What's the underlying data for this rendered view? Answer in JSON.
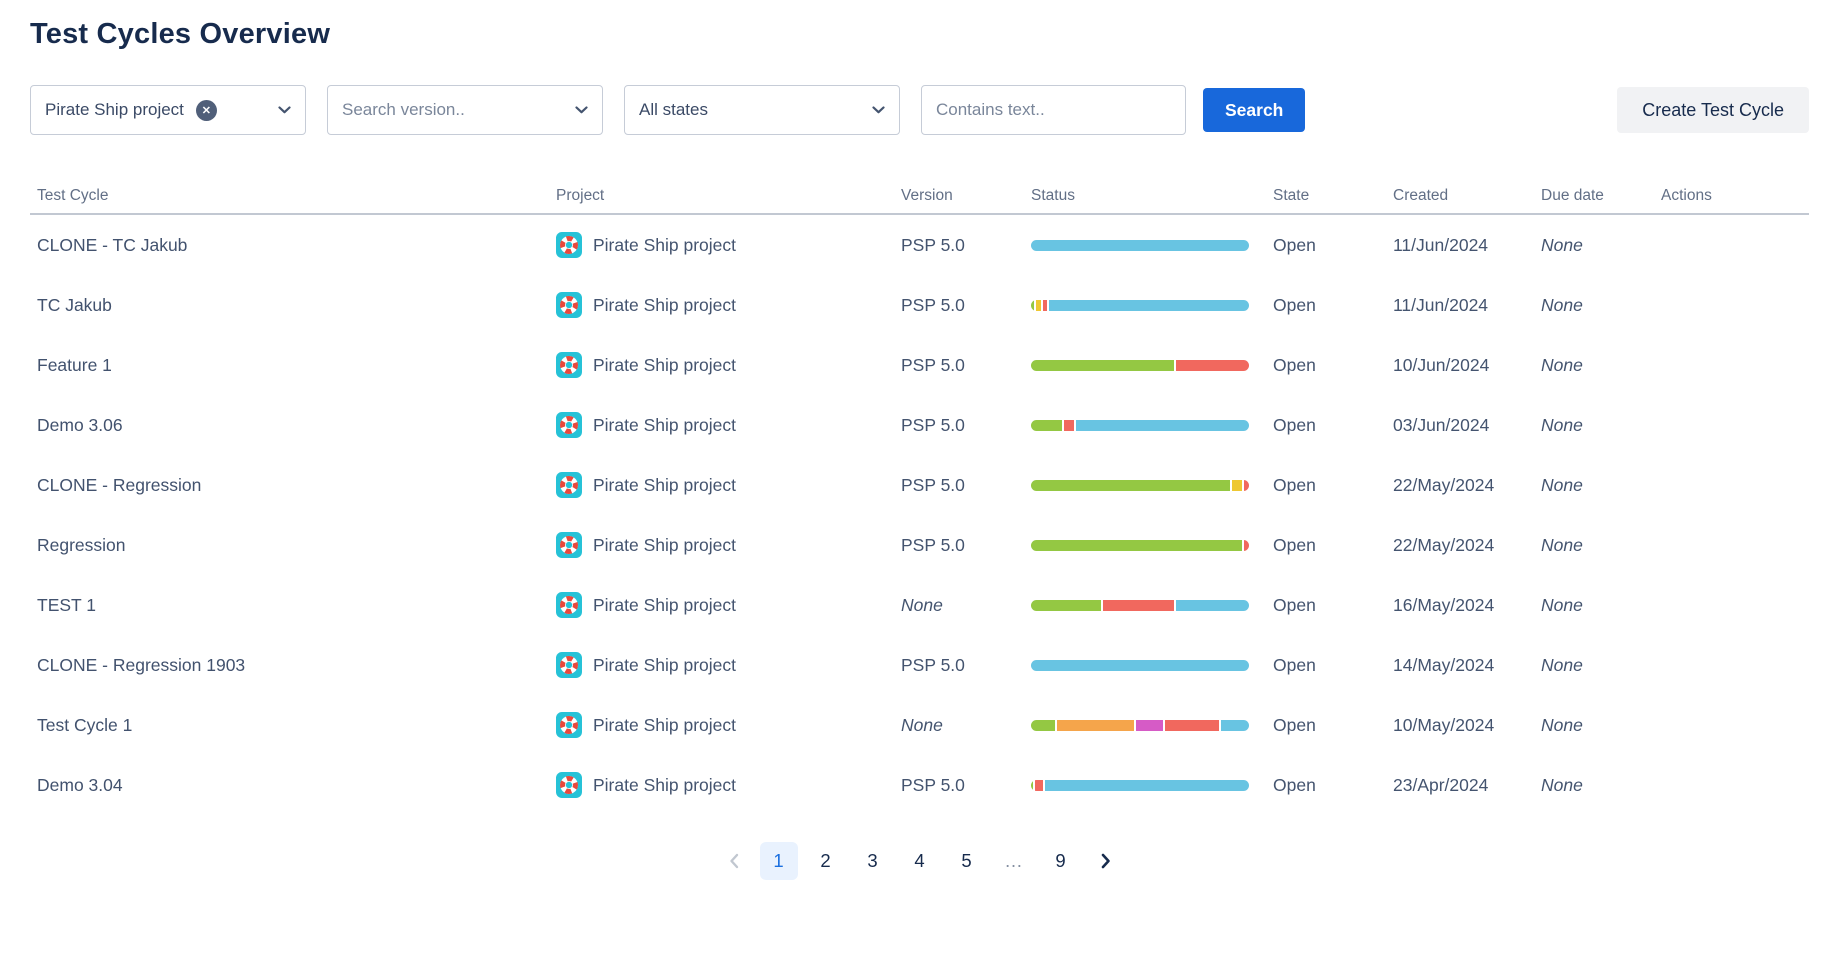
{
  "page_title": "Test Cycles Overview",
  "filters": {
    "project": {
      "value": "Pirate Ship project",
      "clear_icon": "cross-in-circle"
    },
    "version": {
      "placeholder": "Search version.."
    },
    "state": {
      "value": "All states"
    },
    "text": {
      "placeholder": "Contains text.."
    },
    "search_label": "Search",
    "create_label": "Create Test Cycle"
  },
  "status_colors": {
    "blue": "#68C4E2",
    "green": "#94C843",
    "red": "#F1685E",
    "yellow": "#EEC832",
    "orange": "#F5A54B",
    "pink": "#D65BC6"
  },
  "accent_colors": {
    "primary_blue": "#1868DB",
    "title_navy": "#172B4D",
    "pagination_active_bg": "#E9F2FE",
    "pagination_active_text": "#1A6FE0",
    "avatar_teal": "#26C2D7",
    "avatar_ring_red": "#E8483D"
  },
  "table": {
    "columns": [
      "Test Cycle",
      "Project",
      "Version",
      "Status",
      "State",
      "Created",
      "Due date",
      "Actions"
    ],
    "rows": [
      {
        "name": "CLONE - TC Jakub",
        "project": "Pirate Ship project",
        "version": "PSP 5.0",
        "state": "Open",
        "created": "11/Jun/2024",
        "due_date": "None",
        "status_segments": [
          {
            "color": "blue",
            "pct": 100
          }
        ]
      },
      {
        "name": "TC Jakub",
        "project": "Pirate Ship project",
        "version": "PSP 5.0",
        "state": "Open",
        "created": "11/Jun/2024",
        "due_date": "None",
        "status_segments": [
          {
            "color": "green",
            "pct": 1.5
          },
          {
            "color": "yellow",
            "pct": 2.5
          },
          {
            "color": "red",
            "pct": 1.5
          },
          {
            "color": "blue",
            "pct": 94.5
          }
        ]
      },
      {
        "name": "Feature 1",
        "project": "Pirate Ship project",
        "version": "PSP 5.0",
        "state": "Open",
        "created": "10/Jun/2024",
        "due_date": "None",
        "status_segments": [
          {
            "color": "green",
            "pct": 66
          },
          {
            "color": "red",
            "pct": 34
          }
        ]
      },
      {
        "name": "Demo 3.06",
        "project": "Pirate Ship project",
        "version": "PSP 5.0",
        "state": "Open",
        "created": "03/Jun/2024",
        "due_date": "None",
        "status_segments": [
          {
            "color": "green",
            "pct": 14.5
          },
          {
            "color": "red",
            "pct": 4.5
          },
          {
            "color": "blue",
            "pct": 81
          }
        ]
      },
      {
        "name": "CLONE - Regression",
        "project": "Pirate Ship project",
        "version": "PSP 5.0",
        "state": "Open",
        "created": "22/May/2024",
        "due_date": "None",
        "status_segments": [
          {
            "color": "green",
            "pct": 93
          },
          {
            "color": "yellow",
            "pct": 4.5
          },
          {
            "color": "red",
            "pct": 2.5
          }
        ]
      },
      {
        "name": "Regression",
        "project": "Pirate Ship project",
        "version": "PSP 5.0",
        "state": "Open",
        "created": "22/May/2024",
        "due_date": "None",
        "status_segments": [
          {
            "color": "green",
            "pct": 97.5
          },
          {
            "color": "red",
            "pct": 2.5
          }
        ]
      },
      {
        "name": "TEST 1",
        "project": "Pirate Ship project",
        "version": "None",
        "state": "Open",
        "created": "16/May/2024",
        "due_date": "None",
        "status_segments": [
          {
            "color": "green",
            "pct": 32.5
          },
          {
            "color": "red",
            "pct": 33.5
          },
          {
            "color": "blue",
            "pct": 34
          }
        ]
      },
      {
        "name": "CLONE - Regression 1903",
        "project": "Pirate Ship project",
        "version": "PSP 5.0",
        "state": "Open",
        "created": "14/May/2024",
        "due_date": "None",
        "status_segments": [
          {
            "color": "blue",
            "pct": 100
          }
        ]
      },
      {
        "name": "Test Cycle 1",
        "project": "Pirate Ship project",
        "version": "None",
        "state": "Open",
        "created": "10/May/2024",
        "due_date": "None",
        "status_segments": [
          {
            "color": "green",
            "pct": 11
          },
          {
            "color": "orange",
            "pct": 36
          },
          {
            "color": "pink",
            "pct": 12.5
          },
          {
            "color": "red",
            "pct": 25
          },
          {
            "color": "blue",
            "pct": 13
          }
        ]
      },
      {
        "name": "Demo 3.04",
        "project": "Pirate Ship project",
        "version": "PSP 5.0",
        "state": "Open",
        "created": "23/Apr/2024",
        "due_date": "None",
        "status_segments": [
          {
            "color": "green",
            "pct": 1
          },
          {
            "color": "red",
            "pct": 3.5
          },
          {
            "color": "blue",
            "pct": 95.5
          }
        ]
      }
    ]
  },
  "pagination": {
    "pages": [
      "1",
      "2",
      "3",
      "4",
      "5",
      "…",
      "9"
    ],
    "active_page": "1",
    "prev_icon": "chevron-left",
    "next_icon": "chevron-right"
  }
}
